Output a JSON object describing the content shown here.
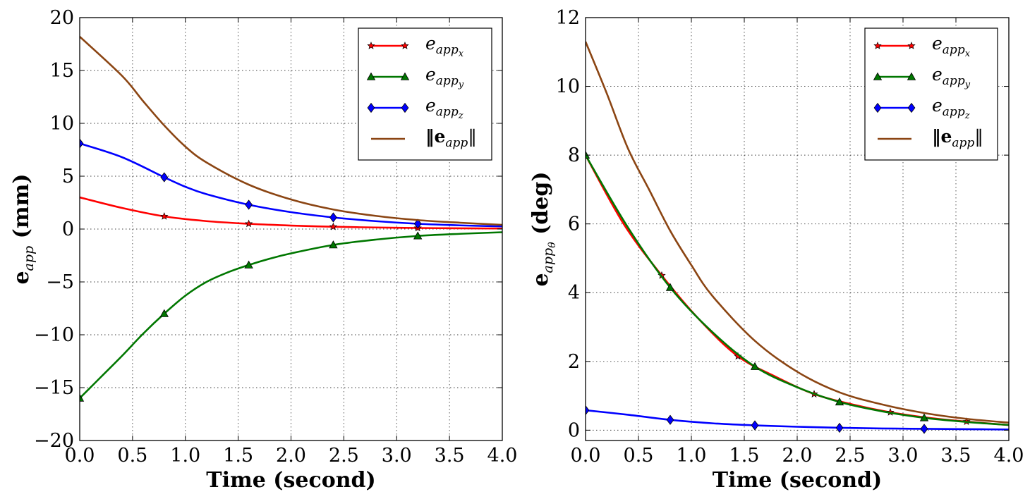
{
  "chart_data": [
    {
      "type": "line",
      "xlabel": "Time (second)",
      "ylabel": "e_app (mm)",
      "ylabel_main": "e",
      "ylabel_sub": "app",
      "ylabel_units": "(mm)",
      "xlim": [
        0,
        4
      ],
      "ylim": [
        -20,
        20
      ],
      "xticks": [
        0,
        0.5,
        1,
        1.5,
        2,
        2.5,
        3,
        3.5,
        4
      ],
      "xtick_labels": [
        "0.0",
        "0.5",
        "1.0",
        "1.5",
        "2.0",
        "2.5",
        "3.0",
        "3.5",
        "4.0"
      ],
      "yticks": [
        -20,
        -15,
        -10,
        -5,
        0,
        5,
        10,
        15,
        20
      ],
      "ytick_labels": [
        "−20",
        "−15",
        "−10",
        "−5",
        "0",
        "5",
        "10",
        "15",
        "20"
      ],
      "grid": true,
      "legend_position": "top-right",
      "series": [
        {
          "name": "e_app_x",
          "legend_main": "e",
          "legend_sub": "app",
          "legend_subsub": "x",
          "color": "#ff0000",
          "marker": "star",
          "x": [
            0,
            0.4,
            0.8,
            1.2,
            1.6,
            2.0,
            2.4,
            2.8,
            3.2,
            3.6,
            4.0
          ],
          "y": [
            3.0,
            2.0,
            1.2,
            0.75,
            0.5,
            0.33,
            0.22,
            0.15,
            0.1,
            0.07,
            0.05
          ],
          "markers_x": [
            0.8,
            1.6,
            2.4,
            3.2
          ]
        },
        {
          "name": "e_app_y",
          "legend_main": "e",
          "legend_sub": "app",
          "legend_subsub": "y",
          "color": "#007700",
          "marker": "triangle",
          "x": [
            0,
            0.2,
            0.4,
            0.6,
            0.8,
            1.0,
            1.2,
            1.4,
            1.6,
            1.8,
            2.0,
            2.4,
            2.8,
            3.2,
            3.6,
            4.0
          ],
          "y": [
            -16,
            -14,
            -12,
            -9.9,
            -8.0,
            -6.3,
            -5.0,
            -4.1,
            -3.4,
            -2.8,
            -2.3,
            -1.5,
            -1.0,
            -0.65,
            -0.45,
            -0.3
          ],
          "markers_x": [
            0,
            0.8,
            1.6,
            2.4,
            3.2
          ]
        },
        {
          "name": "e_app_z",
          "legend_main": "e",
          "legend_sub": "app",
          "legend_subsub": "z",
          "color": "#0000ff",
          "marker": "diamond",
          "x": [
            0,
            0.4,
            0.8,
            1.0,
            1.2,
            1.6,
            2.0,
            2.4,
            2.8,
            3.2,
            3.6,
            4.0
          ],
          "y": [
            8.1,
            6.8,
            4.9,
            4.0,
            3.3,
            2.3,
            1.6,
            1.1,
            0.75,
            0.5,
            0.35,
            0.25
          ],
          "markers_x": [
            0,
            0.8,
            1.6,
            2.4,
            3.2
          ]
        },
        {
          "name": "norm_e_app",
          "legend_main": "‖e",
          "legend_sub": "app",
          "legend_suffix": "‖",
          "color": "#8b4513",
          "marker": "none",
          "x": [
            0,
            0.4,
            0.6,
            0.8,
            1.0,
            1.2,
            1.6,
            2.0,
            2.4,
            2.8,
            3.2,
            3.6,
            4.0
          ],
          "y": [
            18.2,
            14.5,
            12.1,
            9.8,
            7.8,
            6.3,
            4.2,
            2.8,
            1.85,
            1.25,
            0.85,
            0.6,
            0.4
          ],
          "markers_x": []
        }
      ]
    },
    {
      "type": "line",
      "xlabel": "Time (second)",
      "ylabel": "e_app_θ (deg)",
      "ylabel_main": "e",
      "ylabel_sub": "app",
      "ylabel_subsub": "θ",
      "ylabel_units": "(deg)",
      "xlim": [
        0,
        4
      ],
      "ylim": [
        -0.3,
        12
      ],
      "xticks": [
        0,
        0.5,
        1,
        1.5,
        2,
        2.5,
        3,
        3.5,
        4
      ],
      "xtick_labels": [
        "0.0",
        "0.5",
        "1.0",
        "1.5",
        "2.0",
        "2.5",
        "3.0",
        "3.5",
        "4.0"
      ],
      "yticks": [
        0,
        2,
        4,
        6,
        8,
        10,
        12
      ],
      "ytick_labels": [
        "0",
        "2",
        "4",
        "6",
        "8",
        "10",
        "12"
      ],
      "grid": true,
      "legend_position": "top-right",
      "series": [
        {
          "name": "e_app_x",
          "legend_main": "e",
          "legend_sub": "app",
          "legend_subsub": "x",
          "color": "#ff0000",
          "marker": "star",
          "x": [
            0,
            0.36,
            0.72,
            1.08,
            1.44,
            1.8,
            2.16,
            2.52,
            2.88,
            3.24,
            3.6,
            4.0
          ],
          "y": [
            8.0,
            6.0,
            4.5,
            3.2,
            2.15,
            1.55,
            1.05,
            0.75,
            0.52,
            0.36,
            0.25,
            0.15
          ],
          "markers_x": [
            0.72,
            1.44,
            2.16,
            2.88,
            3.6
          ]
        },
        {
          "name": "e_app_y",
          "legend_main": "e",
          "legend_sub": "app",
          "legend_subsub": "y",
          "color": "#007700",
          "marker": "triangle",
          "x": [
            0,
            0.4,
            0.8,
            1.2,
            1.6,
            2.0,
            2.4,
            2.8,
            3.2,
            3.6,
            4.0
          ],
          "y": [
            8.0,
            5.9,
            4.15,
            2.85,
            1.85,
            1.25,
            0.82,
            0.55,
            0.36,
            0.24,
            0.15
          ],
          "markers_x": [
            0,
            0.8,
            1.6,
            2.4,
            3.2
          ]
        },
        {
          "name": "e_app_z",
          "legend_main": "e",
          "legend_sub": "app",
          "legend_subsub": "z",
          "color": "#0000ff",
          "marker": "diamond",
          "x": [
            0,
            0.4,
            0.8,
            1.2,
            1.6,
            2.0,
            2.4,
            2.8,
            3.2,
            3.6,
            4.0
          ],
          "y": [
            0.58,
            0.45,
            0.3,
            0.2,
            0.14,
            0.1,
            0.07,
            0.05,
            0.04,
            0.03,
            0.02
          ],
          "markers_x": [
            0,
            0.8,
            1.6,
            2.4,
            3.2
          ]
        },
        {
          "name": "norm_e_app",
          "legend_main": "‖e",
          "legend_sub": "app",
          "legend_suffix": "‖",
          "color": "#8b4513",
          "marker": "none",
          "x": [
            0,
            0.2,
            0.4,
            0.6,
            0.8,
            1.0,
            1.2,
            1.6,
            2.0,
            2.4,
            2.8,
            3.2,
            3.6,
            4.0
          ],
          "y": [
            11.3,
            9.8,
            8.2,
            7.0,
            5.8,
            4.8,
            3.9,
            2.6,
            1.7,
            1.1,
            0.75,
            0.5,
            0.33,
            0.22
          ],
          "markers_x": []
        }
      ]
    }
  ]
}
